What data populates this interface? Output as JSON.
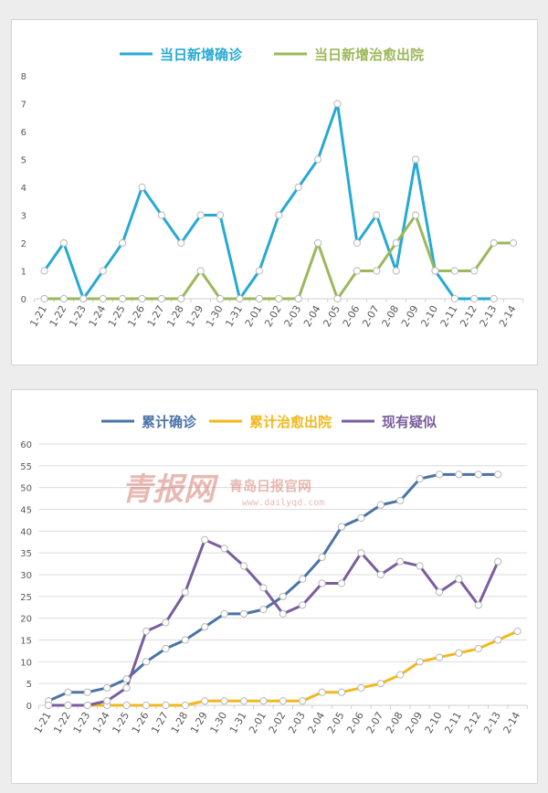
{
  "chart_data": [
    {
      "type": "line",
      "title": "",
      "xlabel": "",
      "ylabel": "",
      "ylim": [
        0,
        8
      ],
      "yticks": [
        0,
        1,
        2,
        3,
        4,
        5,
        6,
        7,
        8
      ],
      "grid": false,
      "legend_position": "top",
      "categories": [
        "1-21",
        "1-22",
        "1-23",
        "1-24",
        "1-25",
        "1-26",
        "1-27",
        "1-28",
        "1-29",
        "1-30",
        "1-31",
        "2-01",
        "2-02",
        "2-03",
        "2-04",
        "2-05",
        "2-06",
        "2-07",
        "2-08",
        "2-09",
        "2-10",
        "2-11",
        "2-12",
        "2-13",
        "2-14"
      ],
      "series": [
        {
          "name": "当日新增确诊",
          "color": "#26a9d6",
          "values": [
            1,
            2,
            0,
            1,
            2,
            4,
            3,
            2,
            3,
            3,
            0,
            1,
            3,
            4,
            5,
            7,
            2,
            3,
            1,
            5,
            1,
            0,
            0,
            0,
            null
          ]
        },
        {
          "name": "当日新增治愈出院",
          "color": "#9bb85a",
          "values": [
            0,
            0,
            0,
            0,
            0,
            0,
            0,
            0,
            1,
            0,
            0,
            0,
            0,
            0,
            2,
            0,
            1,
            1,
            2,
            3,
            1,
            1,
            1,
            2,
            2
          ]
        }
      ]
    },
    {
      "type": "line",
      "title": "",
      "xlabel": "",
      "ylabel": "",
      "ylim": [
        0,
        60
      ],
      "yticks": [
        0,
        5,
        10,
        15,
        20,
        25,
        30,
        35,
        40,
        45,
        50,
        55,
        60
      ],
      "grid": true,
      "legend_position": "top",
      "watermark": {
        "text_main": "青报网",
        "text_side": "青岛日报官网",
        "url": "www.dailyqd.com"
      },
      "categories": [
        "1-21",
        "1-22",
        "1-23",
        "1-24",
        "1-25",
        "1-26",
        "1-27",
        "1-28",
        "1-29",
        "1-30",
        "1-31",
        "2-01",
        "2-02",
        "2-03",
        "2-04",
        "2-05",
        "2-06",
        "2-07",
        "2-08",
        "2-09",
        "2-10",
        "2-11",
        "2-12",
        "2-13",
        "2-14"
      ],
      "series": [
        {
          "name": "累计确诊",
          "color": "#4a73a8",
          "values": [
            1,
            3,
            3,
            4,
            6,
            10,
            13,
            15,
            18,
            21,
            21,
            22,
            25,
            29,
            34,
            41,
            43,
            46,
            47,
            52,
            53,
            53,
            53,
            53,
            null
          ]
        },
        {
          "name": "累计治愈出院",
          "color": "#f2b81c",
          "values": [
            0,
            0,
            0,
            0,
            0,
            0,
            0,
            0,
            1,
            1,
            1,
            1,
            1,
            1,
            3,
            3,
            4,
            5,
            7,
            10,
            11,
            12,
            13,
            15,
            17
          ]
        },
        {
          "name": "现有疑似",
          "color": "#7a5d9f",
          "values": [
            0,
            0,
            0,
            1,
            4,
            17,
            19,
            26,
            38,
            36,
            32,
            27,
            21,
            23,
            28,
            28,
            35,
            30,
            33,
            32,
            26,
            29,
            23,
            33,
            null
          ]
        }
      ]
    }
  ]
}
